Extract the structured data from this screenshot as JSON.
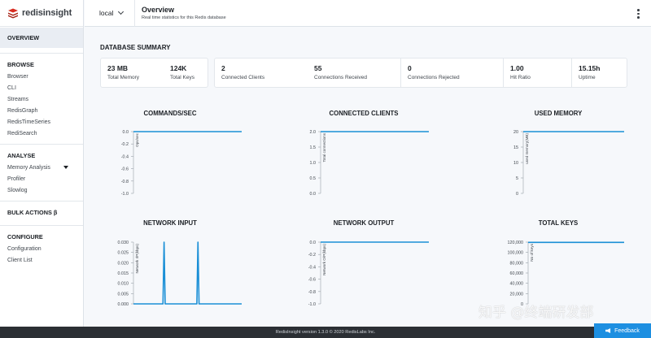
{
  "brand": {
    "name": "redisinsight"
  },
  "header": {
    "db_name": "local",
    "title": "Overview",
    "subtitle": "Real time statistics for this Redis database"
  },
  "sidebar": {
    "active": "OVERVIEW",
    "browse_title": "BROWSE",
    "browse_items": [
      "Browser",
      "CLI",
      "Streams",
      "RedisGraph",
      "RedisTimeSeries",
      "RediSearch"
    ],
    "analyse_title": "ANALYSE",
    "analyse_items": [
      "Memory Analysis",
      "Profiler",
      "Slowlog"
    ],
    "bulk_actions": "BULK ACTIONS β",
    "configure_title": "CONFIGURE",
    "configure_items": [
      "Configuration",
      "Client List"
    ]
  },
  "summary": {
    "title": "DATABASE SUMMARY",
    "total_memory": {
      "value": "23 MB",
      "label": "Total Memory"
    },
    "total_keys": {
      "value": "124K",
      "label": "Total Keys"
    },
    "connected_clients": {
      "value": "2",
      "label": "Connected Clients"
    },
    "connections_received": {
      "value": "55",
      "label": "Connections Received"
    },
    "connections_rejected": {
      "value": "0",
      "label": "Connections Rejected"
    },
    "hit_ratio": {
      "value": "1.00",
      "label": "Hit Ratio"
    },
    "uptime": {
      "value": "15.15h",
      "label": "Uptime"
    }
  },
  "chart_data": [
    {
      "type": "line",
      "title": "COMMANDS/SEC",
      "ylabel": "Ops/sec",
      "yticks": [
        "0.0",
        "-0.2",
        "-0.4",
        "-0.6",
        "-0.8",
        "-1.0"
      ],
      "ylim": [
        -1.0,
        0.0
      ],
      "values": [
        0,
        0,
        0,
        0,
        0,
        0,
        0,
        0,
        0,
        0
      ],
      "color": "#1a8fd6"
    },
    {
      "type": "line",
      "title": "CONNECTED CLIENTS",
      "ylabel": "Total connections",
      "yticks": [
        "2.0",
        "1.5",
        "1.0",
        "0.5",
        "0.0"
      ],
      "ylim": [
        0.0,
        2.0
      ],
      "values": [
        2,
        2,
        2,
        2,
        2,
        2,
        2,
        2,
        2,
        2
      ],
      "color": "#1a8fd6"
    },
    {
      "type": "line",
      "title": "USED MEMORY",
      "ylabel": "used memory(MB)",
      "yticks": [
        "20",
        "15",
        "10",
        "5",
        "0"
      ],
      "ylim": [
        0,
        23
      ],
      "values": [
        23,
        23,
        23,
        23,
        23,
        23,
        23,
        23,
        23,
        23
      ],
      "color": "#1a8fd6"
    },
    {
      "type": "line",
      "title": "NETWORK INPUT",
      "ylabel": "Network I/P(kbps)",
      "yticks": [
        "0.030",
        "0.025",
        "0.020",
        "0.015",
        "0.010",
        "0.005",
        "0.000"
      ],
      "ylim": [
        0.0,
        0.03
      ],
      "values": [
        0,
        0,
        0,
        0,
        0,
        0,
        0,
        0,
        0,
        0,
        0,
        0,
        0,
        0,
        0,
        0,
        0,
        0,
        0,
        0,
        0,
        0,
        0,
        0,
        0,
        0,
        0,
        0,
        0.03,
        0,
        0,
        0,
        0,
        0,
        0,
        0,
        0,
        0,
        0,
        0,
        0,
        0,
        0,
        0,
        0,
        0,
        0,
        0,
        0,
        0,
        0,
        0,
        0,
        0,
        0,
        0,
        0,
        0,
        0,
        0.03,
        0,
        0,
        0,
        0,
        0,
        0,
        0,
        0,
        0,
        0,
        0,
        0,
        0,
        0,
        0,
        0,
        0,
        0,
        0,
        0,
        0,
        0,
        0,
        0,
        0,
        0,
        0,
        0,
        0,
        0,
        0,
        0,
        0,
        0,
        0,
        0,
        0,
        0,
        0,
        0
      ],
      "color": "#1a8fd6"
    },
    {
      "type": "line",
      "title": "NETWORK OUTPUT",
      "ylabel": "Network O/P(kbps)",
      "yticks": [
        "0.0",
        "-0.2",
        "-0.4",
        "-0.6",
        "-0.8",
        "-1.0"
      ],
      "ylim": [
        -1.0,
        0.0
      ],
      "values": [
        0,
        0,
        0,
        0,
        0,
        0,
        0,
        0,
        0,
        0
      ],
      "color": "#1a8fd6"
    },
    {
      "type": "line",
      "title": "TOTAL KEYS",
      "ylabel": "No of keys",
      "yticks": [
        "120,000",
        "100,000",
        "80,000",
        "60,000",
        "40,000",
        "20,000",
        "0"
      ],
      "ylim": [
        0,
        124000
      ],
      "values": [
        123500,
        123500,
        123500,
        123500,
        123500,
        123500,
        123500,
        123500,
        123500,
        123500
      ],
      "color": "#1a8fd6"
    }
  ],
  "footer": {
    "text": "RedisInsight version 1.3.0 © 2020 RedisLabs Inc."
  },
  "feedback": {
    "label": "Feedback"
  },
  "watermark": {
    "text": "知乎 @终端研发部"
  },
  "icons": {
    "logo": "redis-logo-icon",
    "menu": "kebab-menu-icon",
    "chevron": "chevron-down-icon",
    "feedback": "megaphone-icon"
  }
}
